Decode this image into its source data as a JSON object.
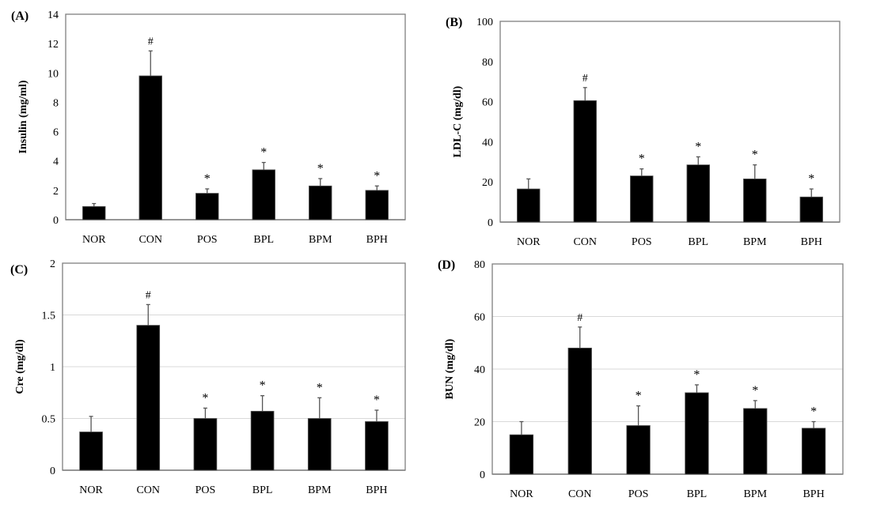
{
  "chart_data": [
    {
      "type": "bar",
      "panel_label": "(A)",
      "ylabel": "Insulin (mg/ml)",
      "categories": [
        "NOR",
        "CON",
        "POS",
        "BPL",
        "BPM",
        "BPH"
      ],
      "values": [
        0.9,
        9.8,
        1.8,
        3.4,
        2.3,
        2.0
      ],
      "errors": [
        0.2,
        1.7,
        0.3,
        0.5,
        0.5,
        0.3
      ],
      "annotations": [
        "",
        "#",
        "*",
        "*",
        "*",
        "*"
      ],
      "ylim": [
        0,
        14
      ],
      "yticks": [
        "0",
        "2",
        "4",
        "6",
        "8",
        "10",
        "12",
        "14"
      ],
      "grid": false,
      "bar_color": "#000000"
    },
    {
      "type": "bar",
      "panel_label": "(B)",
      "ylabel": "LDL-C (mg/dl)",
      "categories": [
        "NOR",
        "CON",
        "POS",
        "BPL",
        "BPM",
        "BPH"
      ],
      "values": [
        16.5,
        60.5,
        23,
        28.5,
        21.5,
        12.5
      ],
      "errors": [
        5,
        6.5,
        3.5,
        4,
        7,
        4
      ],
      "annotations": [
        "",
        "#",
        "*",
        "*",
        "*",
        "*"
      ],
      "ylim": [
        0,
        100
      ],
      "yticks": [
        "0",
        "20",
        "40",
        "60",
        "80",
        "100"
      ],
      "grid": false,
      "bar_color": "#000000"
    },
    {
      "type": "bar",
      "panel_label": "(C)",
      "ylabel": "Cre (mg/dl)",
      "categories": [
        "NOR",
        "CON",
        "POS",
        "BPL",
        "BPM",
        "BPH"
      ],
      "values": [
        0.37,
        1.4,
        0.5,
        0.57,
        0.5,
        0.47
      ],
      "errors": [
        0.15,
        0.2,
        0.1,
        0.15,
        0.2,
        0.11
      ],
      "annotations": [
        "",
        "#",
        "*",
        "*",
        "*",
        "*"
      ],
      "ylim": [
        0,
        2
      ],
      "yticks": [
        "0",
        "0.5",
        "1",
        "1.5",
        "2"
      ],
      "grid": true,
      "bar_color": "#000000"
    },
    {
      "type": "bar",
      "panel_label": "(D)",
      "ylabel": "BUN (mg/dl)",
      "categories": [
        "NOR",
        "CON",
        "POS",
        "BPL",
        "BPM",
        "BPH"
      ],
      "values": [
        15,
        48,
        18.5,
        31,
        25,
        17.5
      ],
      "errors": [
        5,
        8,
        7.5,
        3,
        3,
        2.5
      ],
      "annotations": [
        "",
        "#",
        "*",
        "*",
        "*",
        "*"
      ],
      "ylim": [
        0,
        80
      ],
      "yticks": [
        "0",
        "20",
        "40",
        "60",
        "80"
      ],
      "grid": true,
      "bar_color": "#000000"
    }
  ]
}
